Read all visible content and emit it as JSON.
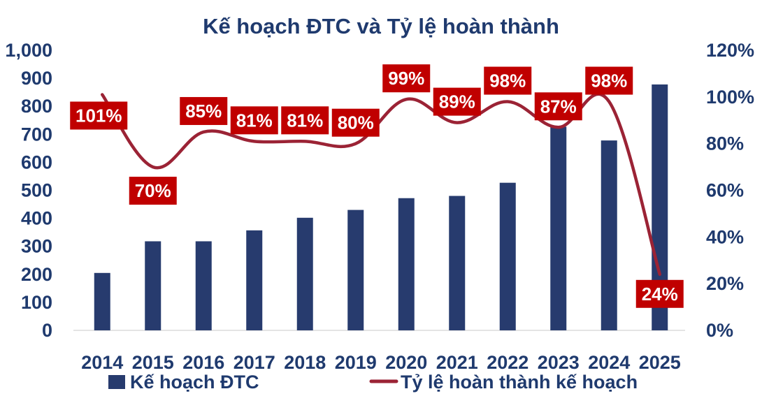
{
  "chart_data": {
    "type": "bar+line",
    "title": "Kế hoạch ĐTC và Tỷ lệ hoàn thành",
    "categories": [
      "2014",
      "2015",
      "2016",
      "2017",
      "2018",
      "2019",
      "2020",
      "2021",
      "2022",
      "2023",
      "2024",
      "2025"
    ],
    "series": [
      {
        "name": "Kế hoạch ĐTC",
        "type": "bar",
        "axis": "left",
        "values": [
          205,
          318,
          318,
          357,
          402,
          430,
          472,
          480,
          527,
          727,
          678,
          878
        ]
      },
      {
        "name": "Tỷ lệ hoàn thành kế hoạch",
        "type": "line",
        "axis": "right",
        "values": [
          101,
          70,
          85,
          81,
          81,
          80,
          99,
          89,
          98,
          87,
          98,
          24
        ],
        "labels": [
          "101%",
          "70%",
          "85%",
          "81%",
          "81%",
          "80%",
          "99%",
          "89%",
          "98%",
          "87%",
          "98%",
          "24%"
        ]
      }
    ],
    "y_left": {
      "ylim": [
        0,
        1000
      ],
      "ticks": [
        0,
        100,
        200,
        300,
        400,
        500,
        600,
        700,
        800,
        900,
        1000
      ],
      "tick_labels": [
        "0",
        "100",
        "200",
        "300",
        "400",
        "500",
        "600",
        "700",
        "800",
        "900",
        "1,000"
      ]
    },
    "y_right": {
      "ylim": [
        0,
        120
      ],
      "ticks": [
        0,
        20,
        40,
        60,
        80,
        100,
        120
      ],
      "tick_labels": [
        "0%",
        "20%",
        "40%",
        "60%",
        "80%",
        "100%",
        "120%"
      ]
    },
    "grid": false,
    "legend_position": "bottom",
    "colors": {
      "bar": "#273b6e",
      "line": "#9b2335",
      "label_bg": "#c00000",
      "label_text": "#ffffff",
      "text": "#1f3a6e",
      "axis": "#c8c8c8"
    }
  }
}
